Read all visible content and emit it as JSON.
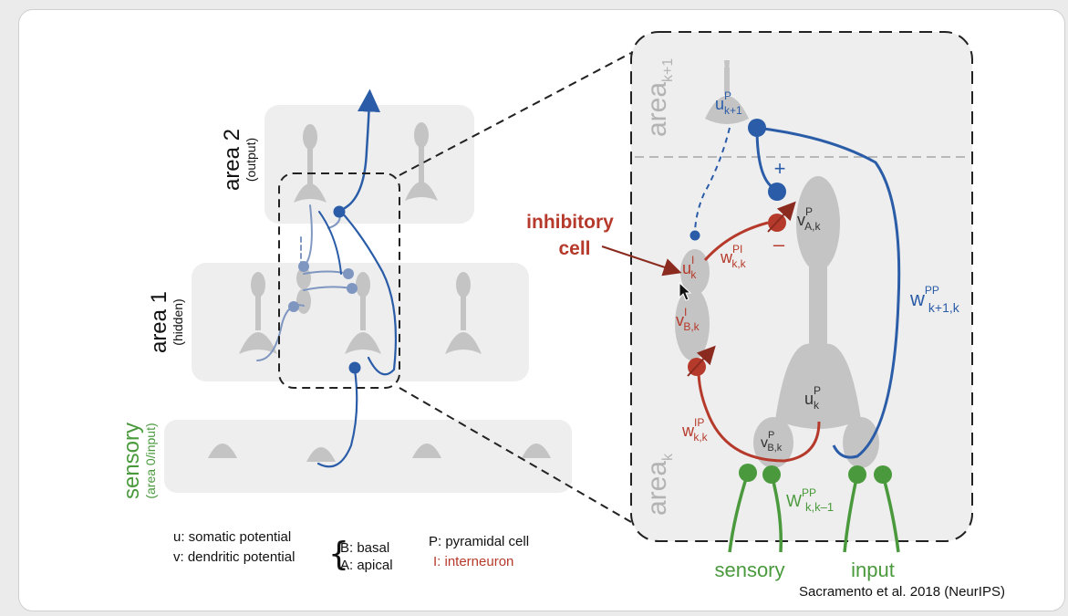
{
  "areas": {
    "area2_title": "area 2",
    "area2_sub": "(output)",
    "area1_title": "area 1",
    "area1_sub": "(hidden)",
    "sensory_title": "sensory",
    "sensory_sub": "(area 0/input)"
  },
  "zoom": {
    "area_upper_base": "area",
    "area_upper_sub": "k+1",
    "area_lower_base": "area",
    "area_lower_sub": "k",
    "inhibitory_line1": "inhibitory",
    "inhibitory_line2": "cell",
    "plus_sign": "+",
    "minus_sign": "–",
    "sensory_label": "sensory",
    "input_label": "input"
  },
  "symbols": {
    "u_pk1_base": "u",
    "u_pk1_sup": "P",
    "u_pk1_sub": "k+1",
    "v_ak_base": "v",
    "v_ak_sup": "P",
    "v_ak_sub": "A,k",
    "u_ik_base": "u",
    "u_ik_sup": "I",
    "u_ik_sub": "k",
    "v_bk_i_base": "v",
    "v_bk_i_sup": "I",
    "v_bk_i_sub": "B,k",
    "u_pk_base": "u",
    "u_pk_sup": "P",
    "u_pk_sub": "k",
    "v_bk_p_base": "v",
    "v_bk_p_sup": "P",
    "v_bk_p_sub": "B,k",
    "w_pi_base": "w",
    "w_pi_sup": "PI",
    "w_pi_sub": "k,k",
    "w_ip_base": "w",
    "w_ip_sup": "IP",
    "w_ip_sub": "k,k",
    "w_pp_up_base": "w",
    "w_pp_up_sup": "PP",
    "w_pp_up_sub": "k+1,k",
    "w_pp_in_base": "W",
    "w_pp_in_sup": "PP",
    "w_pp_in_sub": "k,k–1"
  },
  "legend": {
    "u": "u: somatic potential",
    "v": "v: dendritic potential",
    "b": "B: basal",
    "a": "A: apical",
    "p": "P: pyramidal cell",
    "i": "I: interneuron"
  },
  "citation": "Sacramento et al. 2018 (NeurIPS)",
  "colors": {
    "blue": "#2a5ca8",
    "lightblue": "#7f97c0",
    "red": "#b63a2b",
    "green": "#4a9a3d",
    "cell": "#c4c4c4",
    "panel": "#eeeeee"
  }
}
